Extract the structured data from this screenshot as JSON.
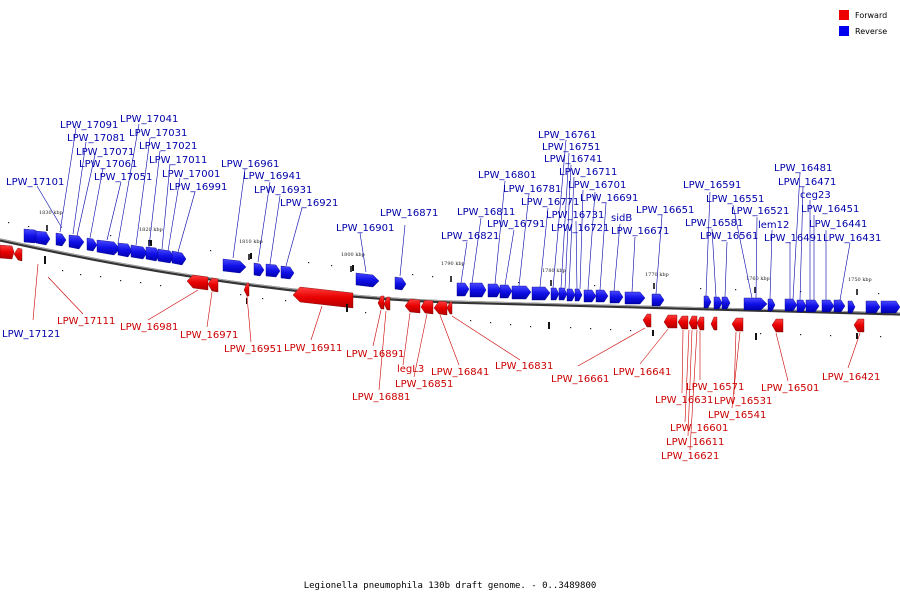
{
  "caption": "Legionella pneumophila 130b draft genome. - 0..3489800",
  "legend": [
    {
      "name": "Forward",
      "color": "#ee0000"
    },
    {
      "name": "Reverse",
      "color": "#0000ee"
    }
  ],
  "colors": {
    "forward": "#ee0000",
    "reverse": "#1a1aee",
    "forward_text": "#cc0000",
    "reverse_text": "#0000aa",
    "backbone": "#777777"
  },
  "scale_labels": [
    "1830 kbp",
    "1820 kbp",
    "1810 kbp",
    "1800 kbp",
    "1790 kbp",
    "1780 kbp",
    "1770 kbp",
    "1760 kbp",
    "1750 kbp"
  ],
  "reverse_labels": [
    "LPW_17091",
    "LPW_17081",
    "LPW_17071",
    "LPW_17061",
    "LPW_17051",
    "LPW_17041",
    "LPW_17031",
    "LPW_17021",
    "LPW_17011",
    "LPW_17001",
    "LPW_16991",
    "LPW_17101",
    "LPW_16961",
    "LPW_16941",
    "LPW_16931",
    "LPW_16921",
    "LPW_16901",
    "LPW_16871",
    "LPW_16811",
    "LPW_16821",
    "LPW_16801",
    "LPW_16791",
    "LPW_16781",
    "LPW_16771",
    "LPW_16761",
    "LPW_16751",
    "LPW_16741",
    "LPW_16731",
    "LPW_16721",
    "LPW_16711",
    "LPW_16701",
    "LPW_16691",
    "sidB",
    "LPW_16671",
    "LPW_16651",
    "LPW_16591",
    "LPW_16581",
    "LPW_16561",
    "LPW_16551",
    "LPW_16521",
    "lem12",
    "LPW_16491",
    "LPW_16481",
    "LPW_16471",
    "ceg23",
    "LPW_16451",
    "LPW_16441",
    "LPW_16431"
  ],
  "forward_labels": [
    "LPW_17121",
    "LPW_17111",
    "LPW_16981",
    "LPW_16971",
    "LPW_16951",
    "LPW_16911",
    "LPW_16891",
    "LPW_16881",
    "legL3",
    "LPW_16851",
    "LPW_16841",
    "LPW_16831",
    "LPW_16661",
    "LPW_16641",
    "LPW_16631",
    "LPW_16571",
    "LPW_16531",
    "LPW_16541",
    "LPW_16601",
    "LPW_16611",
    "LPW_16621",
    "LPW_16501",
    "LPW_16421"
  ]
}
